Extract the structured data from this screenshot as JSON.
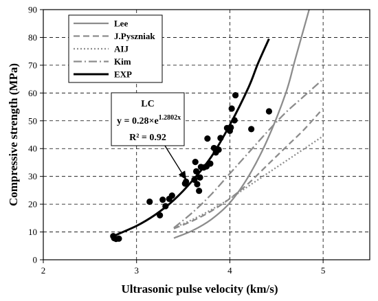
{
  "chart_data": {
    "type": "scatter",
    "xlabel": "Ultrasonic pulse velocity (km/s)",
    "ylabel": "Compressive strength (MPa)",
    "xlim": [
      2,
      5.5
    ],
    "ylim": [
      0,
      90
    ],
    "xticks": [
      2,
      3,
      4,
      5
    ],
    "yticks": [
      0,
      10,
      20,
      30,
      40,
      50,
      60,
      70,
      80,
      90
    ],
    "grid": "dashed",
    "legend_position": "top-left",
    "series": [
      {
        "name": "Lee",
        "kind": "line",
        "color": "#8c8c8c",
        "dash": "solid",
        "points": [
          [
            3.4,
            7.8
          ],
          [
            3.6,
            10.5
          ],
          [
            3.8,
            14.5
          ],
          [
            4.0,
            20.5
          ],
          [
            4.2,
            30
          ],
          [
            4.4,
            43
          ],
          [
            4.6,
            60
          ],
          [
            4.7,
            72
          ],
          [
            4.85,
            90
          ]
        ]
      },
      {
        "name": "J.Pyszniak",
        "kind": "line",
        "color": "#8c8c8c",
        "dash": "dashed",
        "points": [
          [
            3.4,
            11.2
          ],
          [
            3.6,
            14
          ],
          [
            3.8,
            17.5
          ],
          [
            4.0,
            22
          ],
          [
            4.2,
            27.5
          ],
          [
            4.4,
            34
          ],
          [
            4.6,
            40.5
          ],
          [
            4.8,
            47
          ],
          [
            5.0,
            54.5
          ]
        ]
      },
      {
        "name": "AIJ",
        "kind": "line",
        "color": "#8c8c8c",
        "dash": "dotted",
        "points": [
          [
            3.4,
            11.5
          ],
          [
            3.6,
            14.5
          ],
          [
            3.8,
            18
          ],
          [
            4.0,
            22
          ],
          [
            4.2,
            26.5
          ],
          [
            4.4,
            31
          ],
          [
            4.6,
            35.5
          ],
          [
            4.8,
            40
          ],
          [
            5.0,
            44.5
          ]
        ]
      },
      {
        "name": "Kim",
        "kind": "line",
        "color": "#8c8c8c",
        "dash": "dash-dot",
        "points": [
          [
            3.4,
            11.5
          ],
          [
            3.6,
            17
          ],
          [
            3.8,
            23.5
          ],
          [
            4.0,
            31
          ],
          [
            4.2,
            38.5
          ],
          [
            4.4,
            46
          ],
          [
            4.6,
            53
          ],
          [
            4.8,
            59
          ],
          [
            5.0,
            65
          ]
        ]
      },
      {
        "name": "EXP",
        "kind": "line",
        "color": "#000000",
        "dash": "solid",
        "points": [
          [
            2.75,
            8.5
          ],
          [
            3.0,
            12.2
          ],
          [
            3.2,
            16.2
          ],
          [
            3.4,
            21.5
          ],
          [
            3.6,
            28.5
          ],
          [
            3.8,
            37
          ],
          [
            4.0,
            48.5
          ],
          [
            4.2,
            62
          ],
          [
            4.3,
            70.5
          ],
          [
            4.42,
            79.5
          ]
        ]
      }
    ],
    "scatter_points": [
      [
        2.75,
        8.5
      ],
      [
        2.76,
        7.8
      ],
      [
        2.78,
        7.5
      ],
      [
        2.81,
        7.6
      ],
      [
        3.14,
        20.9
      ],
      [
        3.25,
        16
      ],
      [
        3.28,
        21.6
      ],
      [
        3.31,
        19.3
      ],
      [
        3.35,
        21.9
      ],
      [
        3.38,
        23.1
      ],
      [
        3.52,
        27.4
      ],
      [
        3.53,
        28.1
      ],
      [
        3.62,
        28.8
      ],
      [
        3.63,
        35.2
      ],
      [
        3.64,
        31.8
      ],
      [
        3.65,
        27.2
      ],
      [
        3.67,
        24.8
      ],
      [
        3.68,
        29.6
      ],
      [
        3.69,
        33.4
      ],
      [
        3.72,
        33.2
      ],
      [
        3.75,
        33.6
      ],
      [
        3.76,
        43.6
      ],
      [
        3.79,
        34.6
      ],
      [
        3.83,
        40.2
      ],
      [
        3.85,
        38.6
      ],
      [
        3.88,
        39.6
      ],
      [
        3.9,
        43.8
      ],
      [
        3.97,
        47.4
      ],
      [
        4.0,
        46.4
      ],
      [
        4.01,
        47.6
      ],
      [
        4.02,
        54.4
      ],
      [
        4.05,
        50.2
      ],
      [
        4.06,
        59.2
      ],
      [
        4.23,
        47.0
      ],
      [
        4.42,
        53.4
      ]
    ],
    "annotation": {
      "title": "LC",
      "equation_prefix": "y = 0.28×e",
      "equation_exponent": "1.2802x",
      "r_squared": "R² = 0.92",
      "arrow_to": [
        3.55,
        30
      ]
    }
  }
}
